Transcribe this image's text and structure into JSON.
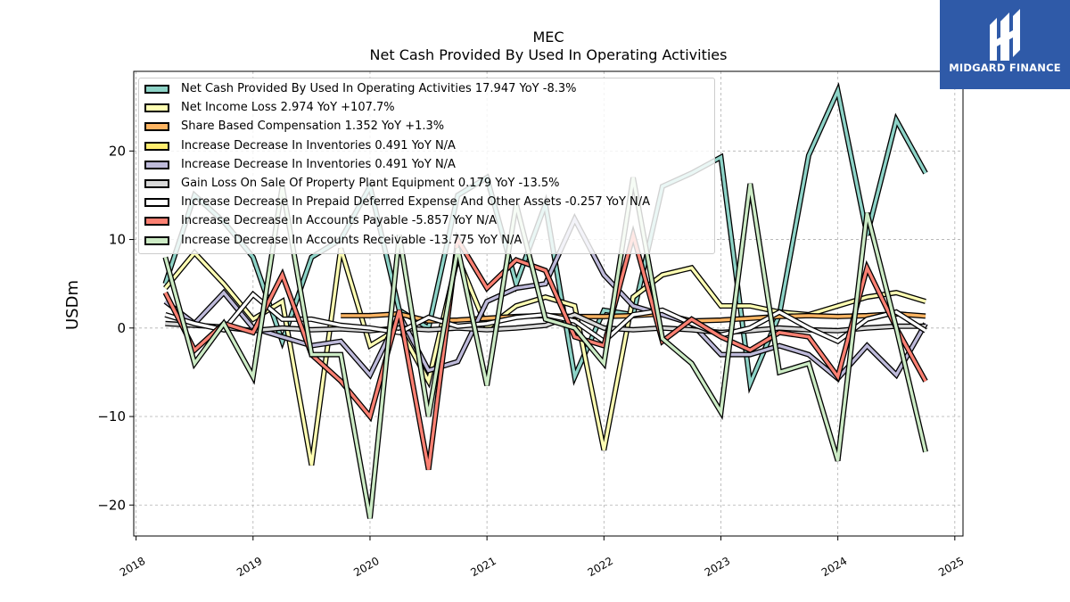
{
  "brand": {
    "name": "MIDGARD FINANCE"
  },
  "chart_data": {
    "type": "line",
    "title": "MEC",
    "subtitle": "Net Cash Provided By Used In Operating Activities",
    "xlabel": "",
    "ylabel": "USDm",
    "xlim": [
      2017.98,
      2025.07
    ],
    "ylim": [
      -23.5,
      29
    ],
    "x_ticks": [
      2018,
      2019,
      2020,
      2021,
      2022,
      2023,
      2024,
      2025
    ],
    "x_tick_labels": [
      "2018",
      "2019",
      "2020",
      "2021",
      "2022",
      "2023",
      "2024",
      "2025"
    ],
    "y_ticks": [
      -20,
      -10,
      0,
      10,
      20
    ],
    "y_tick_labels": [
      "−20",
      "−10",
      "0",
      "10",
      "20"
    ],
    "grid": true,
    "legend_position": "upper-left",
    "x": [
      2018.25,
      2018.5,
      2018.75,
      2019.0,
      2019.25,
      2019.5,
      2019.75,
      2020.0,
      2020.25,
      2020.5,
      2020.75,
      2021.0,
      2021.25,
      2021.5,
      2021.75,
      2022.0,
      2022.25,
      2022.5,
      2022.75,
      2023.0,
      2023.25,
      2023.5,
      2023.75,
      2024.0,
      2024.25,
      2024.5,
      2024.75
    ],
    "series": [
      {
        "name": "Net Cash Provided By Used In Operating Activities",
        "legend": "Net Cash Provided By Used In Operating Activities  17.947 YoY -8.3%",
        "color": "#8dd3c7",
        "values": [
          5,
          15,
          12,
          8,
          -1.5,
          8,
          10,
          16,
          2,
          0,
          15,
          17,
          5,
          14,
          -5.5,
          2,
          1.5,
          16,
          17.5,
          19.3,
          -6.3,
          1.5,
          19.5,
          26.8,
          10.5,
          23.5,
          17.5
        ]
      },
      {
        "name": "Net Income Loss",
        "legend": "Net Income Loss  2.974 YoY +107.7%",
        "color": "#ffffb3",
        "values": [
          4.5,
          8.5,
          5,
          1,
          3,
          -15.5,
          9,
          -2,
          0,
          -6,
          8,
          0,
          2.5,
          3.5,
          2.5,
          -13.8,
          3.5,
          6,
          6.8,
          2.5,
          2.5,
          1.8,
          1.5,
          2.5,
          3.5,
          4,
          3
        ]
      },
      {
        "name": "Share Based Compensation",
        "legend": "Share Based Compensation  1.352 YoY +1.3%",
        "color": "#fdb462",
        "values": [
          null,
          null,
          null,
          null,
          null,
          null,
          1.4,
          1.4,
          1.6,
          0.8,
          0.9,
          1.1,
          1.3,
          1.4,
          1.3,
          1.3,
          1.4,
          1.6,
          0.8,
          0.9,
          1.1,
          1.3,
          1.4,
          1.3,
          1.4,
          1.6,
          1.35
        ]
      },
      {
        "name": "Increase Decrease In Inventories",
        "legend": "Increase Decrease In Inventories  0.491 YoY N/A",
        "color": "#ffed6f",
        "values": [
          null,
          null,
          null,
          null,
          null,
          null,
          null,
          null,
          null,
          null,
          null,
          null,
          null,
          null,
          null,
          null,
          null,
          null,
          null,
          null,
          null,
          null,
          null,
          null,
          null,
          null,
          null
        ]
      },
      {
        "name": "Increase Decrease In Inventories",
        "legend": "Increase Decrease In Inventories  0.491 YoY N/A",
        "color": "#bebada",
        "values": [
          3,
          0.5,
          4,
          0,
          -1,
          -2,
          -1.5,
          -5.3,
          1.5,
          -4.8,
          -3.8,
          3,
          4.5,
          5,
          12.3,
          6,
          2.5,
          1.5,
          0.5,
          -3,
          -3,
          -2,
          -3,
          -5.7,
          -2,
          -5.3,
          0.5
        ]
      },
      {
        "name": "Gain Loss On Sale Of Property Plant Equipment",
        "legend": "Gain Loss On Sale Of Property Plant Equipment  0.179 YoY -13.5%",
        "color": "#d9d9d9",
        "values": [
          0.5,
          0.3,
          0.1,
          -0.3,
          0,
          -0.2,
          -0.1,
          -0.3,
          0,
          -0.2,
          0,
          -0.2,
          0,
          0.3,
          1.5,
          0,
          -0.2,
          0,
          -0.2,
          -0.5,
          -0.3,
          0,
          -0.2,
          -0.3,
          0,
          0.2,
          0.2
        ]
      },
      {
        "name": "Increase Decrease In Prepaid Deferred Expense And Other Assets",
        "legend": "Increase Decrease In Prepaid Deferred Expense And Other Assets  -0.257 YoY N/A",
        "color": "#ffffff",
        "values": [
          1.5,
          0.5,
          -0.2,
          3.8,
          1,
          1,
          0.3,
          0,
          -0.5,
          1.2,
          0.2,
          0.5,
          1.2,
          1.5,
          0.8,
          -1.5,
          1.5,
          2,
          0.5,
          -0.8,
          0,
          1.8,
          0,
          -1.5,
          1,
          1.8,
          -0.3
        ]
      },
      {
        "name": "Increase Decrease In Accounts Payable",
        "legend": "Increase Decrease In Accounts Payable  -5.857 YoY N/A",
        "color": "#fb8072",
        "values": [
          4,
          -2.5,
          0.5,
          -0.5,
          6,
          -3,
          -6,
          -10,
          2,
          -16,
          10,
          4.5,
          7.7,
          6.5,
          -1,
          -2,
          10.5,
          -1.5,
          1,
          -1,
          -2.5,
          -0.5,
          -1,
          -5.5,
          6.8,
          0,
          -6
        ]
      },
      {
        "name": "Increase Decrease In Accounts Receivable",
        "legend": "Increase Decrease In Accounts Receivable  -13.775 YoY N/A",
        "color": "#ccebc5",
        "values": [
          8,
          -4,
          0.5,
          -5.5,
          16,
          -3,
          -3,
          -21.5,
          10.5,
          -10,
          9,
          -6.5,
          14,
          1,
          0,
          -4,
          17,
          -1.2,
          -4,
          -9.5,
          16.3,
          -5,
          -4,
          -15,
          13,
          0,
          -14
        ]
      }
    ]
  }
}
